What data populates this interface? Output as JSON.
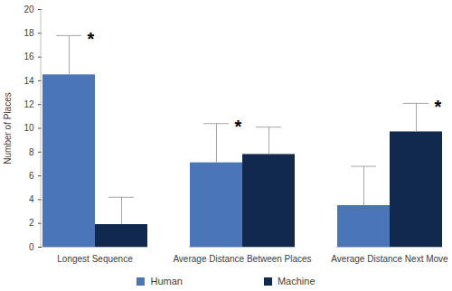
{
  "chart_data": {
    "type": "bar",
    "y_label": "Number of Places",
    "categories": [
      "Longest Sequence",
      "Average Distance Between Places",
      "Average Distance Next Move"
    ],
    "series": [
      {
        "name": "Human",
        "color": "#4a76b8",
        "values": [
          14.5,
          7.1,
          3.5
        ],
        "errors": [
          3.3,
          3.3,
          3.3
        ]
      },
      {
        "name": "Machine",
        "color": "#10294d",
        "values": [
          1.9,
          7.8,
          9.7
        ],
        "errors": [
          2.3,
          2.3,
          2.4
        ]
      }
    ],
    "annotations": [
      {
        "text": "*",
        "category": "Longest Sequence"
      },
      {
        "text": "*",
        "category": "Average Distance Between Places"
      },
      {
        "text": "*",
        "category": "Average Distance Next Move"
      }
    ],
    "ylim": [
      0,
      20
    ],
    "yticks": [
      0,
      2,
      4,
      6,
      8,
      10,
      12,
      14,
      16,
      18,
      20
    ],
    "grid": false,
    "legend": "bottom"
  }
}
